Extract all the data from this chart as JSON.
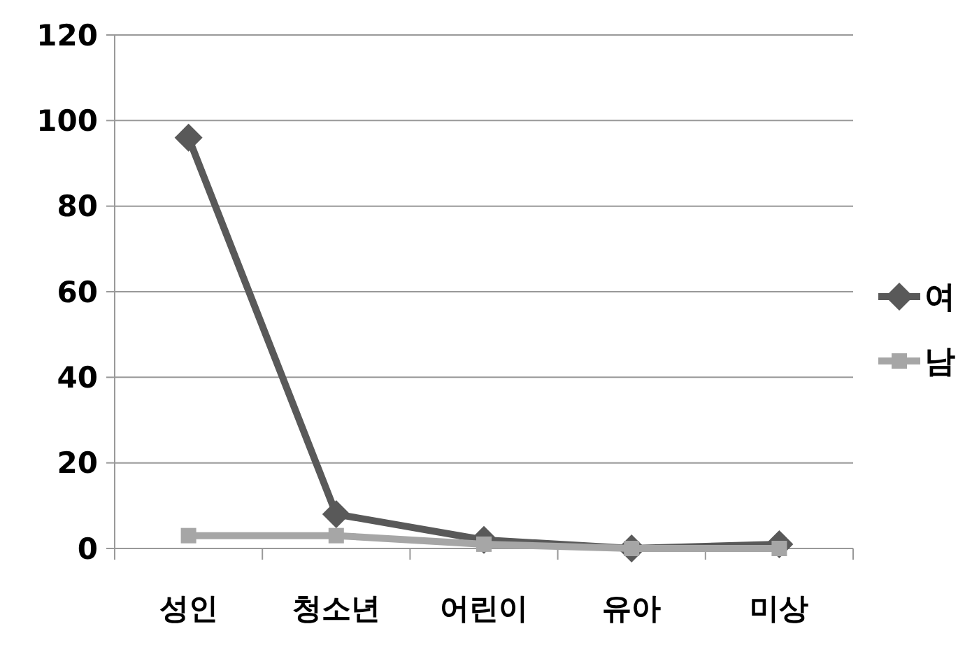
{
  "chart_data": {
    "type": "line",
    "categories": [
      "성인",
      "청소년",
      "어린이",
      "유아",
      "미상"
    ],
    "series": [
      {
        "name": "여",
        "color": "#595959",
        "marker": "diamond",
        "values": [
          96,
          8,
          2,
          0,
          1
        ]
      },
      {
        "name": "남",
        "color": "#a6a6a6",
        "marker": "square",
        "values": [
          3,
          3,
          1,
          0,
          0
        ]
      }
    ],
    "ylim": [
      0,
      120
    ],
    "yticks": [
      0,
      20,
      40,
      60,
      80,
      100,
      120
    ],
    "grid": "y",
    "legend": "right"
  }
}
